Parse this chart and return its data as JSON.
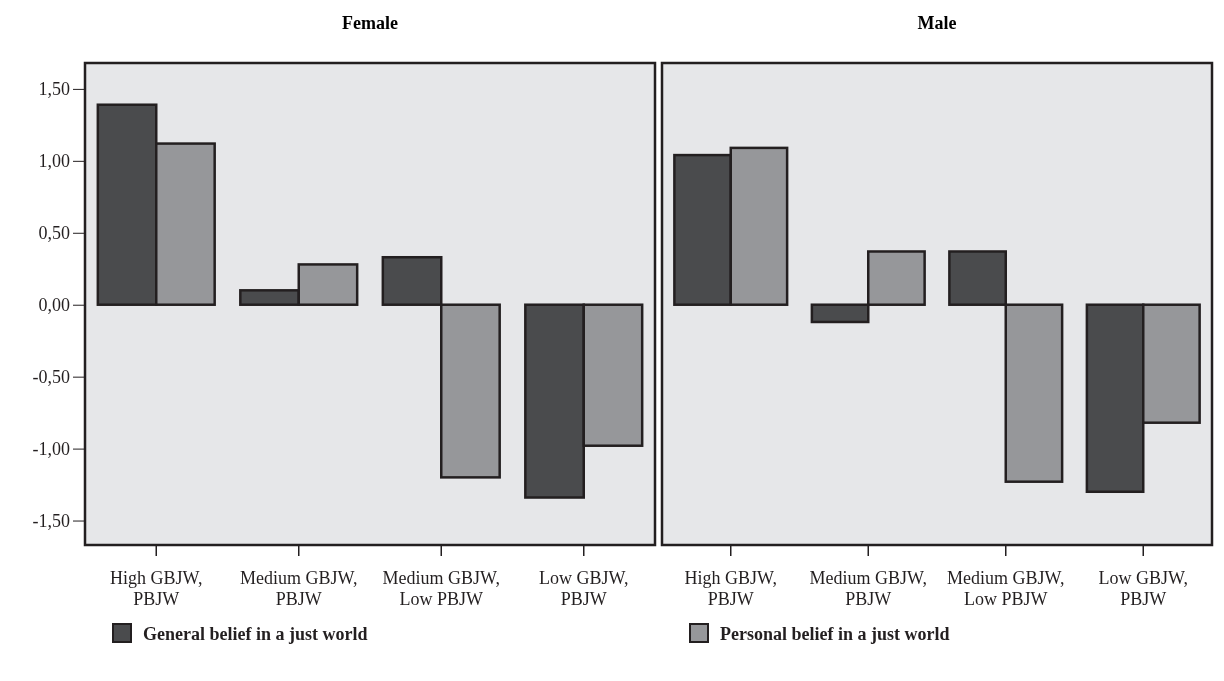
{
  "chart_data": [
    {
      "type": "bar",
      "title": "Female",
      "categories": [
        "High GBJW, PBJW",
        "Medium GBJW, PBJW",
        "Medium GBJW, Low PBJW",
        "Low GBJW, PBJW"
      ],
      "series": [
        {
          "name": "General belief in a just world",
          "color": "#4a4b4d",
          "values": [
            1.39,
            0.1,
            0.33,
            -1.34
          ]
        },
        {
          "name": "Personal belief in a just world",
          "color": "#96979a",
          "values": [
            1.12,
            0.28,
            -1.2,
            -0.98
          ]
        }
      ],
      "ylim": [
        -1.67,
        1.68
      ],
      "yticks": [
        {
          "value": -1.5,
          "label": "-1,50"
        },
        {
          "value": -1,
          "label": "-1,00"
        },
        {
          "value": -0.5,
          "label": "-0,50"
        },
        {
          "value": 0,
          "label": "0,00"
        },
        {
          "value": 0.5,
          "label": "0,50"
        },
        {
          "value": 1,
          "label": "1,00"
        },
        {
          "value": 1.5,
          "label": "1,50"
        }
      ],
      "legend": "bottom"
    },
    {
      "type": "bar",
      "title": "Male",
      "categories": [
        "High GBJW, PBJW",
        "Medium GBJW, PBJW",
        "Medium GBJW, Low PBJW",
        "Low GBJW, PBJW"
      ],
      "series": [
        {
          "color": "#4a4b4d",
          "values": [
            1.04,
            -0.12,
            0.37,
            -1.3
          ]
        },
        {
          "color": "#96979a",
          "values": [
            1.09,
            0.37,
            -1.23,
            -0.82
          ]
        }
      ],
      "ylim": [
        -1.67,
        1.68
      ],
      "tick_labels": "x"
    }
  ]
}
